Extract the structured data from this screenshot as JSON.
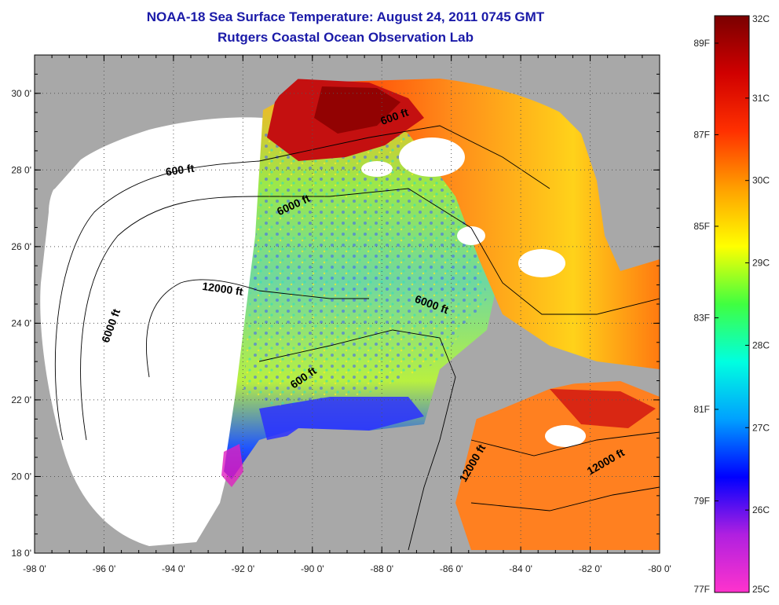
{
  "header": {
    "title": "NOAA-18 Sea Surface Temperature:  August 24, 2011 0745 GMT",
    "subtitle": "Rutgers Coastal Ocean Observation Lab"
  },
  "map": {
    "lon_range": [
      -98,
      -80
    ],
    "lat_range": [
      18,
      31
    ],
    "lon_ticks": [
      {
        "value": -98,
        "label": "-98 0'"
      },
      {
        "value": -96,
        "label": "-96 0'"
      },
      {
        "value": -94,
        "label": "-94 0'"
      },
      {
        "value": -92,
        "label": "-92 0'"
      },
      {
        "value": -90,
        "label": "-90 0'"
      },
      {
        "value": -88,
        "label": "-88 0'"
      },
      {
        "value": -86,
        "label": "-86 0'"
      },
      {
        "value": -84,
        "label": "-84 0'"
      },
      {
        "value": -82,
        "label": "-82 0'"
      },
      {
        "value": -80,
        "label": "-80 0'"
      }
    ],
    "lat_ticks": [
      {
        "value": 18,
        "label": "18 0'"
      },
      {
        "value": 20,
        "label": "20 0'"
      },
      {
        "value": 22,
        "label": "22 0'"
      },
      {
        "value": 24,
        "label": "24 0'"
      },
      {
        "value": 26,
        "label": "26 0'"
      },
      {
        "value": 28,
        "label": "28 0'"
      },
      {
        "value": 30,
        "label": "30 0'"
      }
    ],
    "contour_labels": [
      {
        "text": "600 ft",
        "lon": -93.8,
        "lat": 27.9,
        "angle": -8
      },
      {
        "text": "6000 ft",
        "lon": -90.5,
        "lat": 27.0,
        "angle": -25
      },
      {
        "text": "600 ft",
        "lon": -87.6,
        "lat": 29.3,
        "angle": -20
      },
      {
        "text": "12000 ft",
        "lon": -92.6,
        "lat": 24.8,
        "angle": 8
      },
      {
        "text": "6000 ft",
        "lon": -95.7,
        "lat": 23.9,
        "angle": -70
      },
      {
        "text": "6000 ft",
        "lon": -86.6,
        "lat": 24.4,
        "angle": 20
      },
      {
        "text": "600 ft",
        "lon": -90.2,
        "lat": 22.5,
        "angle": -35
      },
      {
        "text": "12000 ft",
        "lon": -85.3,
        "lat": 20.3,
        "angle": -60
      },
      {
        "text": "12000 ft",
        "lon": -81.5,
        "lat": 20.3,
        "angle": -30
      }
    ],
    "colors": {
      "land": "#a8a8a8",
      "nodata": "#ffffff",
      "frame": "#000000"
    }
  },
  "colorbar": {
    "celsius": [
      "25C",
      "26C",
      "27C",
      "28C",
      "29C",
      "30C",
      "31C",
      "32C"
    ],
    "fahrenheit": [
      "77F",
      "79F",
      "81F",
      "83F",
      "85F",
      "87F",
      "89F"
    ],
    "celsius_range": [
      25,
      32
    ],
    "stops": [
      "#ff33cc",
      "#b020e0",
      "#0000ff",
      "#00a0ff",
      "#00ffe0",
      "#40ff40",
      "#ffff00",
      "#ffa000",
      "#ff3000",
      "#d00000",
      "#7a0000"
    ]
  }
}
